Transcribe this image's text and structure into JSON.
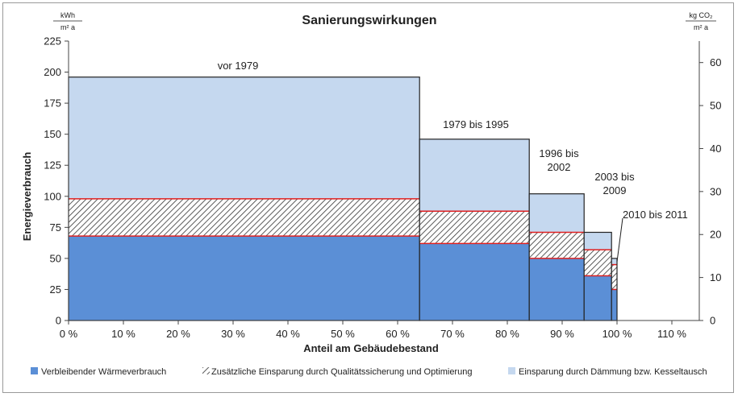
{
  "chart_data": {
    "type": "bar",
    "subtype": "variable-width stacked",
    "title": "Sanierungswirkungen",
    "xlabel": "Anteil am Gebäudebestand",
    "ylabel": "Energieverbrauch",
    "y_unit_left": {
      "num": "kWh",
      "den": "m² a"
    },
    "y_unit_right": {
      "num": "kg CO₂",
      "den": "m² a"
    },
    "xlim": [
      0,
      115
    ],
    "ylim": [
      0,
      225
    ],
    "y2lim": [
      0,
      65
    ],
    "x_ticks": [
      0,
      10,
      20,
      30,
      40,
      50,
      60,
      70,
      80,
      90,
      100,
      110
    ],
    "x_tick_labels": [
      "0 %",
      "10 %",
      "20 %",
      "30 %",
      "40 %",
      "50 %",
      "60 %",
      "70 %",
      "80 %",
      "90 %",
      "100 %",
      "110 %"
    ],
    "y_ticks": [
      0,
      25,
      50,
      75,
      100,
      125,
      150,
      175,
      200,
      225
    ],
    "y2_ticks": [
      0,
      10,
      20,
      30,
      40,
      50,
      60
    ],
    "grid": false,
    "legend_position": "bottom",
    "series": [
      {
        "name": "Verbleibender Wärmeverbrauch",
        "color": "#5b8fd6"
      },
      {
        "name": "Zusätzliche Einsparung durch Qualitätssicherung und Optimierung",
        "pattern": "hatch"
      },
      {
        "name": "Einsparung durch Dämmung bzw. Kesseltausch",
        "color": "#c5d8ef"
      }
    ],
    "categories": [
      {
        "label": "vor 1979",
        "x_start": 0,
        "x_end": 64,
        "remaining": 68,
        "quality": 30,
        "insulation": 98,
        "total": 196
      },
      {
        "label": "1979 bis 1995",
        "x_start": 64,
        "x_end": 84,
        "remaining": 62,
        "quality": 26,
        "insulation": 58,
        "total": 146
      },
      {
        "label": "1996 bis 2002",
        "x_start": 84,
        "x_end": 94,
        "remaining": 50,
        "quality": 21,
        "insulation": 31,
        "total": 102
      },
      {
        "label": "2003 bis 2009",
        "x_start": 94,
        "x_end": 99,
        "remaining": 36,
        "quality": 21,
        "insulation": 14,
        "total": 71
      },
      {
        "label": "2010 bis 2011",
        "x_start": 99,
        "x_end": 100,
        "remaining": 25,
        "quality": 20,
        "insulation": 5,
        "total": 50
      }
    ]
  }
}
